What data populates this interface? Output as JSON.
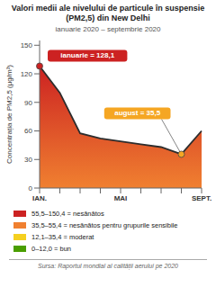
{
  "chart_data": {
    "type": "area",
    "title": "Valori medii ale nivelului de particule în suspensie (PM2,5) din New Delhi",
    "subtitle": "ianuarie 2020 – septembrie 2020",
    "y_label": "Concentrația de PM2,5 (μg/m³)",
    "categories": [
      "IAN.",
      null,
      null,
      null,
      "MAI",
      null,
      null,
      null,
      "SEPT."
    ],
    "values": [
      128.1,
      100.0,
      57.5,
      52.0,
      49.0,
      46.0,
      43.0,
      35.5,
      60.0
    ],
    "color": "#2d2d2d",
    "ylim": [
      0,
      155
    ],
    "yticks": [
      0,
      30,
      60,
      90,
      120,
      150
    ],
    "grid": false,
    "annotations": [
      {
        "text": "ianuarie = 128,1",
        "x": 0,
        "y": 128.1,
        "color": "#cc2222"
      },
      {
        "text": "august = 35,5",
        "x": 7,
        "y": 35.5,
        "color": "#f5a623"
      }
    ],
    "legend_items": [
      {
        "color": "#cc2222",
        "label": "55,5–150,4 = nesănătos"
      },
      {
        "color": "#f08030",
        "label": "35,5–55,4 = nesănătos pentru grupurile sensibile"
      },
      {
        "color": "#f5d020",
        "label": "12,1–35,4 = moderat"
      },
      {
        "color": "#4a9e00",
        "label": "0–12,0 = bun"
      }
    ],
    "source": "Sursa: Raportul mondial al calității aerului pe 2020"
  }
}
